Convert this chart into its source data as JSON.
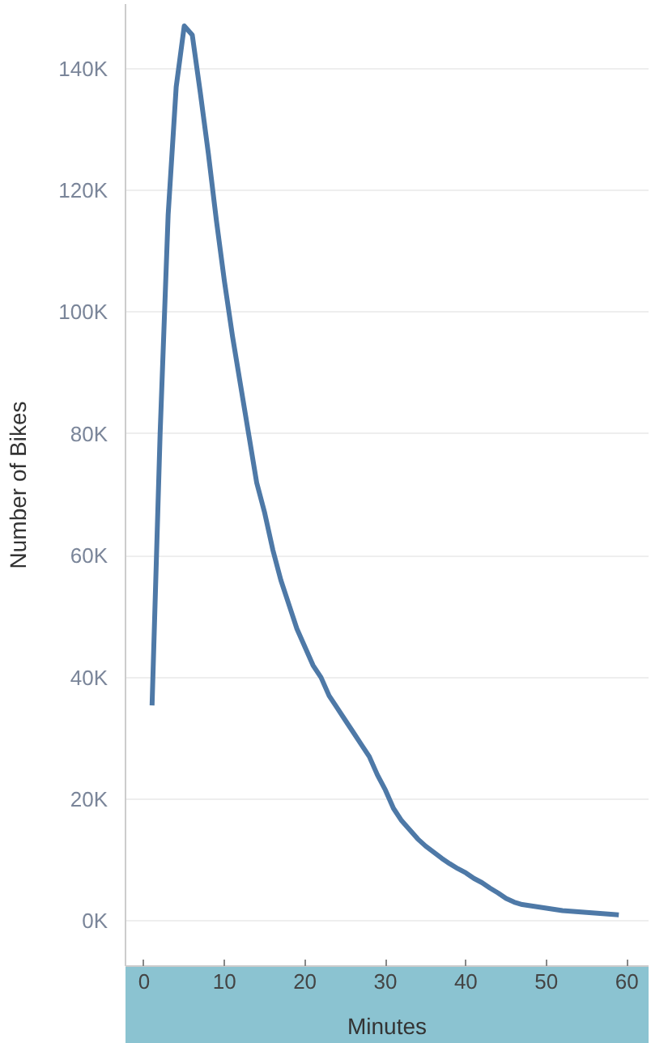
{
  "chart_data": {
    "type": "line",
    "xlabel": "Minutes",
    "ylabel": "Number of Bikes",
    "x": [
      1,
      2,
      3,
      4,
      5,
      6,
      7,
      8,
      9,
      10,
      11,
      12,
      13,
      14,
      15,
      16,
      17,
      18,
      19,
      20,
      21,
      22,
      23,
      24,
      25,
      26,
      27,
      28,
      29,
      30,
      31,
      32,
      33,
      34,
      35,
      36,
      37,
      38,
      39,
      40,
      41,
      42,
      43,
      44,
      45,
      46,
      47,
      48,
      49,
      50,
      51,
      52,
      53,
      54,
      55,
      56,
      57,
      58,
      59
    ],
    "series": [
      {
        "color": "#4e79a7",
        "values": [
          35400,
          80000,
          116000,
          137000,
          147000,
          145500,
          136000,
          126000,
          115000,
          105000,
          96000,
          88000,
          80000,
          72000,
          67000,
          61000,
          56000,
          52000,
          48000,
          45000,
          42000,
          40000,
          37000,
          35000,
          33000,
          31000,
          29000,
          27000,
          24000,
          21500,
          18500,
          16500,
          15000,
          13500,
          12300,
          11300,
          10300,
          9400,
          8600,
          7900,
          7000,
          6300,
          5400,
          4600,
          3700,
          3100,
          2700,
          2500,
          2300,
          2100,
          1900,
          1700,
          1600,
          1500,
          1400,
          1300,
          1200,
          1100,
          1000
        ]
      }
    ],
    "xlim": [
      -2.3,
      62.7
    ],
    "ylim": [
      -7400,
      150600
    ],
    "xticks": [
      0,
      10,
      20,
      30,
      40,
      50,
      60
    ],
    "yticks": [
      {
        "value": 0,
        "label": "0K"
      },
      {
        "value": 20000,
        "label": "20K"
      },
      {
        "value": 40000,
        "label": "40K"
      },
      {
        "value": 60000,
        "label": "60K"
      },
      {
        "value": 80000,
        "label": "80K"
      },
      {
        "value": 100000,
        "label": "100K"
      },
      {
        "value": 120000,
        "label": "120K"
      },
      {
        "value": 140000,
        "label": "140K"
      }
    ],
    "grid": "y",
    "marker": "none",
    "line_style": "solid"
  }
}
